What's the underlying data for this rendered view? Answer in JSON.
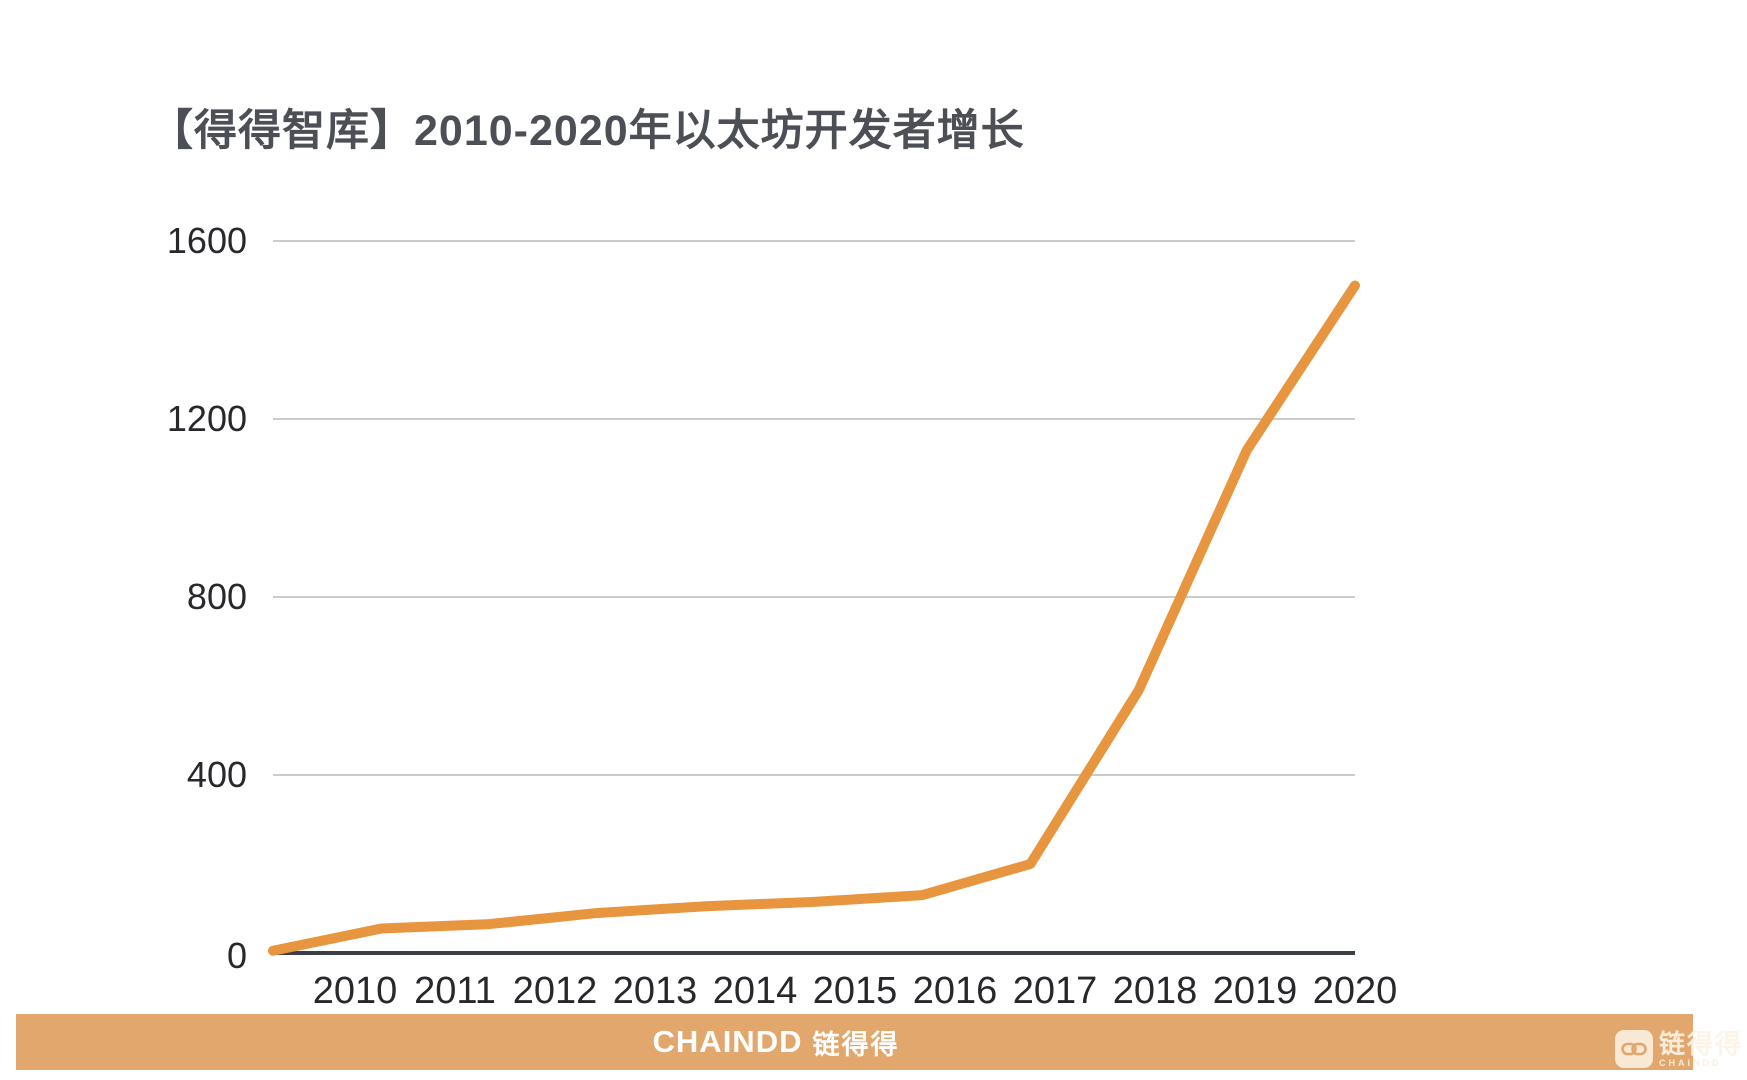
{
  "page": {
    "title": "【得得智库】2010-2020年以太坊开发者增长"
  },
  "chart_data": {
    "type": "line",
    "title": "【得得智库】2010-2020年以太坊开发者增长",
    "categories": [
      "2010",
      "2011",
      "2012",
      "2013",
      "2014",
      "2015",
      "2016",
      "2017",
      "2018",
      "2019",
      "2020"
    ],
    "values": [
      5,
      55,
      65,
      90,
      105,
      115,
      130,
      200,
      590,
      1130,
      1500
    ],
    "xlabel": "",
    "ylabel": "",
    "ylim": [
      0,
      1600
    ],
    "y_ticks": [
      1600,
      1200,
      800,
      400,
      0
    ],
    "grid": true,
    "legend": "none",
    "line_color": "#E8953F",
    "gridline_color": "#cbcbcb",
    "axis_color": "#3a3f45"
  },
  "footer": {
    "brand_latin": "CHAINDD",
    "brand_cn": "链得得",
    "banner_color": "#E2A76C"
  },
  "watermark": {
    "icon": "chain-link-icon",
    "text_cn": "链得得",
    "text_latin": "CHAINDD"
  }
}
